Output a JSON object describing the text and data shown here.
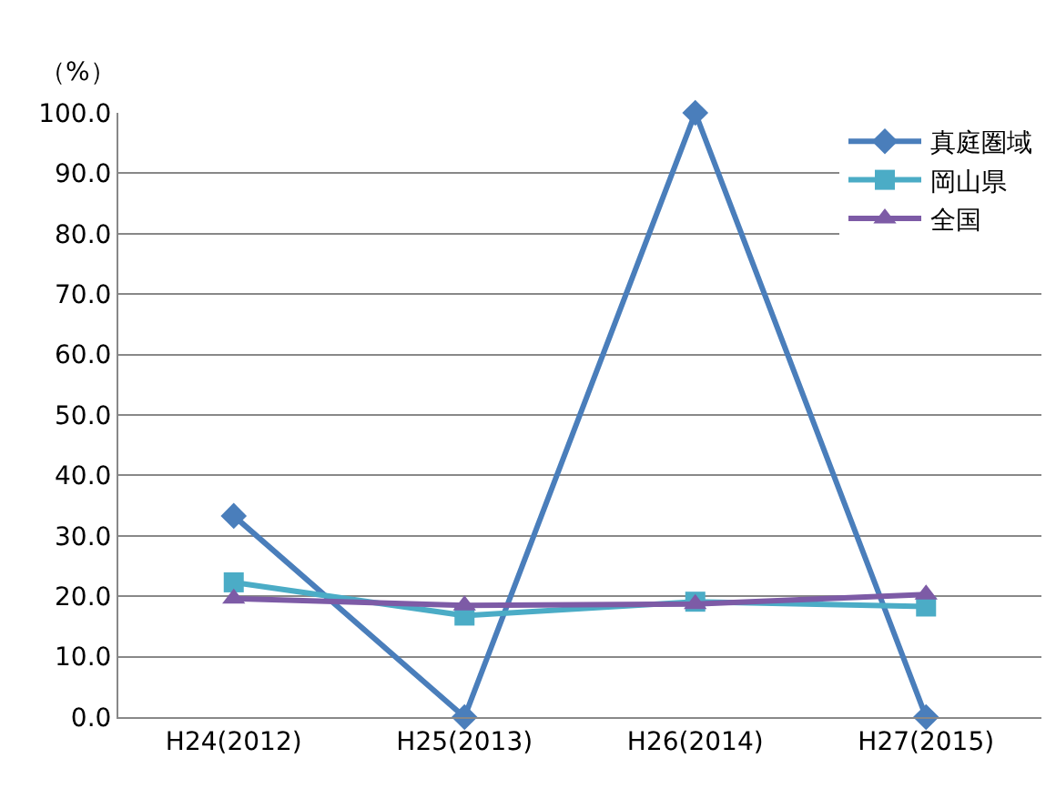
{
  "chart_data": {
    "type": "line",
    "ylabel": "（%）",
    "categories": [
      "H24(2012)",
      "H25(2013)",
      "H26(2014)",
      "H27(2015)"
    ],
    "series": [
      {
        "name": "真庭圏域",
        "color": "#4a7ebb",
        "marker": "diamond",
        "values": [
          33.3,
          0,
          100,
          0
        ]
      },
      {
        "name": "岡山県",
        "color": "#4bacc6",
        "marker": "square",
        "values": [
          22.3,
          16.8,
          19.1,
          18.3
        ]
      },
      {
        "name": "全国",
        "color": "#7d5ba6",
        "marker": "triangle",
        "values": [
          19.6,
          18.5,
          18.7,
          20.3
        ]
      }
    ],
    "ylim": [
      0,
      100
    ],
    "yticks": [
      {
        "value": 0,
        "label": "0.0"
      },
      {
        "value": 10,
        "label": "10.0"
      },
      {
        "value": 20,
        "label": "20.0"
      },
      {
        "value": 30,
        "label": "30.0"
      },
      {
        "value": 40,
        "label": "40.0"
      },
      {
        "value": 50,
        "label": "50.0"
      },
      {
        "value": 60,
        "label": "60.0"
      },
      {
        "value": 70,
        "label": "70.0"
      },
      {
        "value": 80,
        "label": "80.0"
      },
      {
        "value": 90,
        "label": "90.0"
      },
      {
        "value": 100,
        "label": "100.0"
      }
    ],
    "grid": "y",
    "legend": "top right",
    "line_style": "solid"
  }
}
